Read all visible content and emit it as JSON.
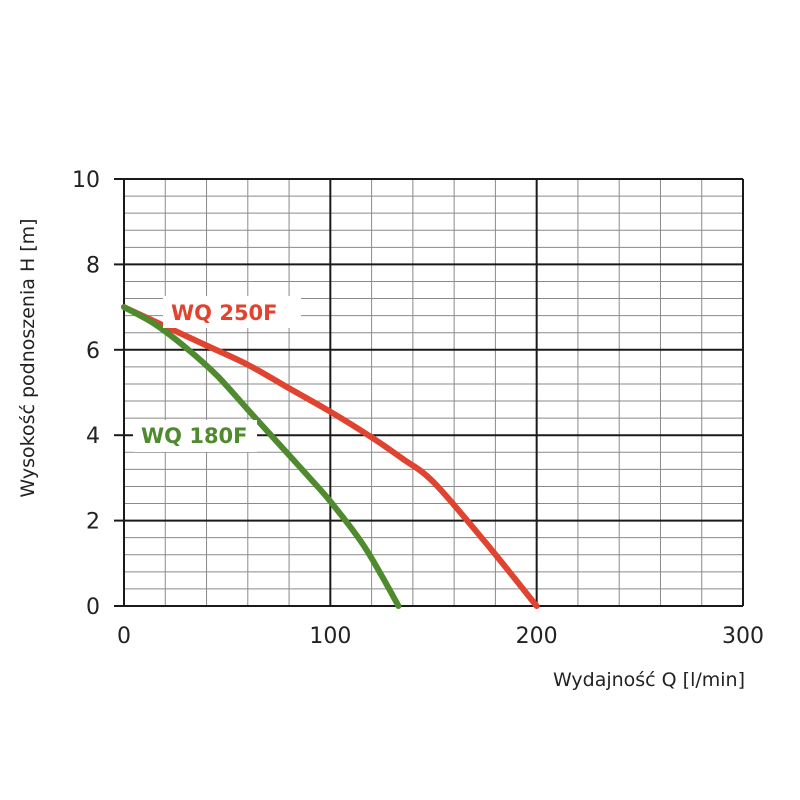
{
  "chart_data": {
    "type": "line",
    "title": "",
    "xlabel": "Wydajność Q [l/min]",
    "ylabel": "Wysokość podnoszenia H [m]",
    "xlim": [
      0,
      300
    ],
    "ylim": [
      0,
      10
    ],
    "x_ticks": [
      0,
      100,
      200,
      300
    ],
    "y_ticks": [
      0,
      2,
      4,
      6,
      8,
      10
    ],
    "x_tick_labels": [
      "0",
      "100",
      "200",
      "300"
    ],
    "y_tick_labels": [
      "0",
      "2",
      "4",
      "6",
      "8",
      "10"
    ],
    "x_minor_step": 20,
    "y_minor_step": 0.4,
    "grid": true,
    "series": [
      {
        "name": "WQ 250F",
        "color": "#e0432f",
        "x": [
          0,
          20,
          40,
          60,
          80,
          100,
          120,
          135,
          150,
          175,
          200
        ],
        "y": [
          7.0,
          6.55,
          6.1,
          5.65,
          5.1,
          4.55,
          3.95,
          3.45,
          2.9,
          1.5,
          0
        ]
      },
      {
        "name": "WQ 180F",
        "color": "#4f8a2e",
        "x": [
          0,
          15,
          30,
          45,
          60,
          75,
          90,
          100,
          115,
          125,
          133
        ],
        "y": [
          7.0,
          6.6,
          6.05,
          5.4,
          4.6,
          3.8,
          3.0,
          2.45,
          1.5,
          0.7,
          0
        ]
      }
    ]
  }
}
